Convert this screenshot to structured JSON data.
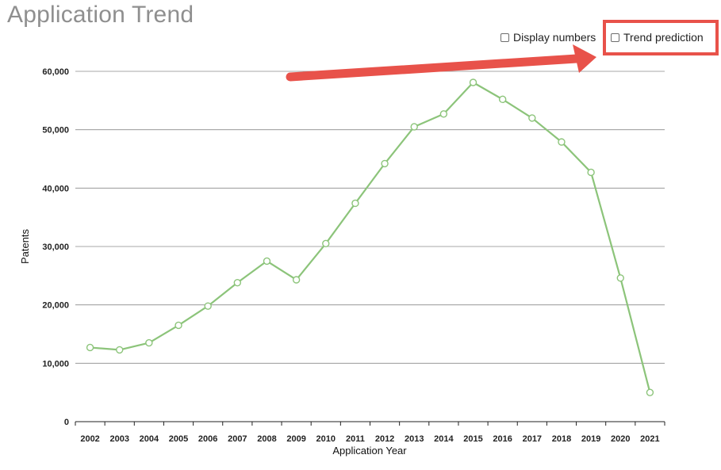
{
  "header": {
    "title": "Application Trend"
  },
  "options": {
    "display_numbers": {
      "label": "Display numbers",
      "checked": false
    },
    "trend_prediction": {
      "label": "Trend prediction",
      "checked": false
    }
  },
  "colors": {
    "line": "#8cc47a",
    "marker_fill": "#ffffff",
    "grid": "#8a8a8a",
    "title": "#8f8f8f",
    "annotation": "#e8524a"
  },
  "chart_data": {
    "type": "line",
    "title": "",
    "xlabel": "Application Year",
    "ylabel": "Patents",
    "ylim": [
      0,
      60000
    ],
    "yticks": [
      "0",
      "10,000",
      "20,000",
      "30,000",
      "40,000",
      "50,000",
      "60,000"
    ],
    "grid": true,
    "categories": [
      "2002",
      "2003",
      "2004",
      "2005",
      "2006",
      "2007",
      "2008",
      "2009",
      "2010",
      "2011",
      "2012",
      "2013",
      "2014",
      "2015",
      "2016",
      "2017",
      "2018",
      "2019",
      "2020",
      "2021"
    ],
    "series": [
      {
        "values": [
          12700,
          12300,
          13500,
          16500,
          19800,
          23800,
          27500,
          24300,
          30500,
          37400,
          44200,
          50500,
          52700,
          58100,
          55200,
          52000,
          47900,
          42700,
          24600,
          5000
        ]
      }
    ]
  }
}
